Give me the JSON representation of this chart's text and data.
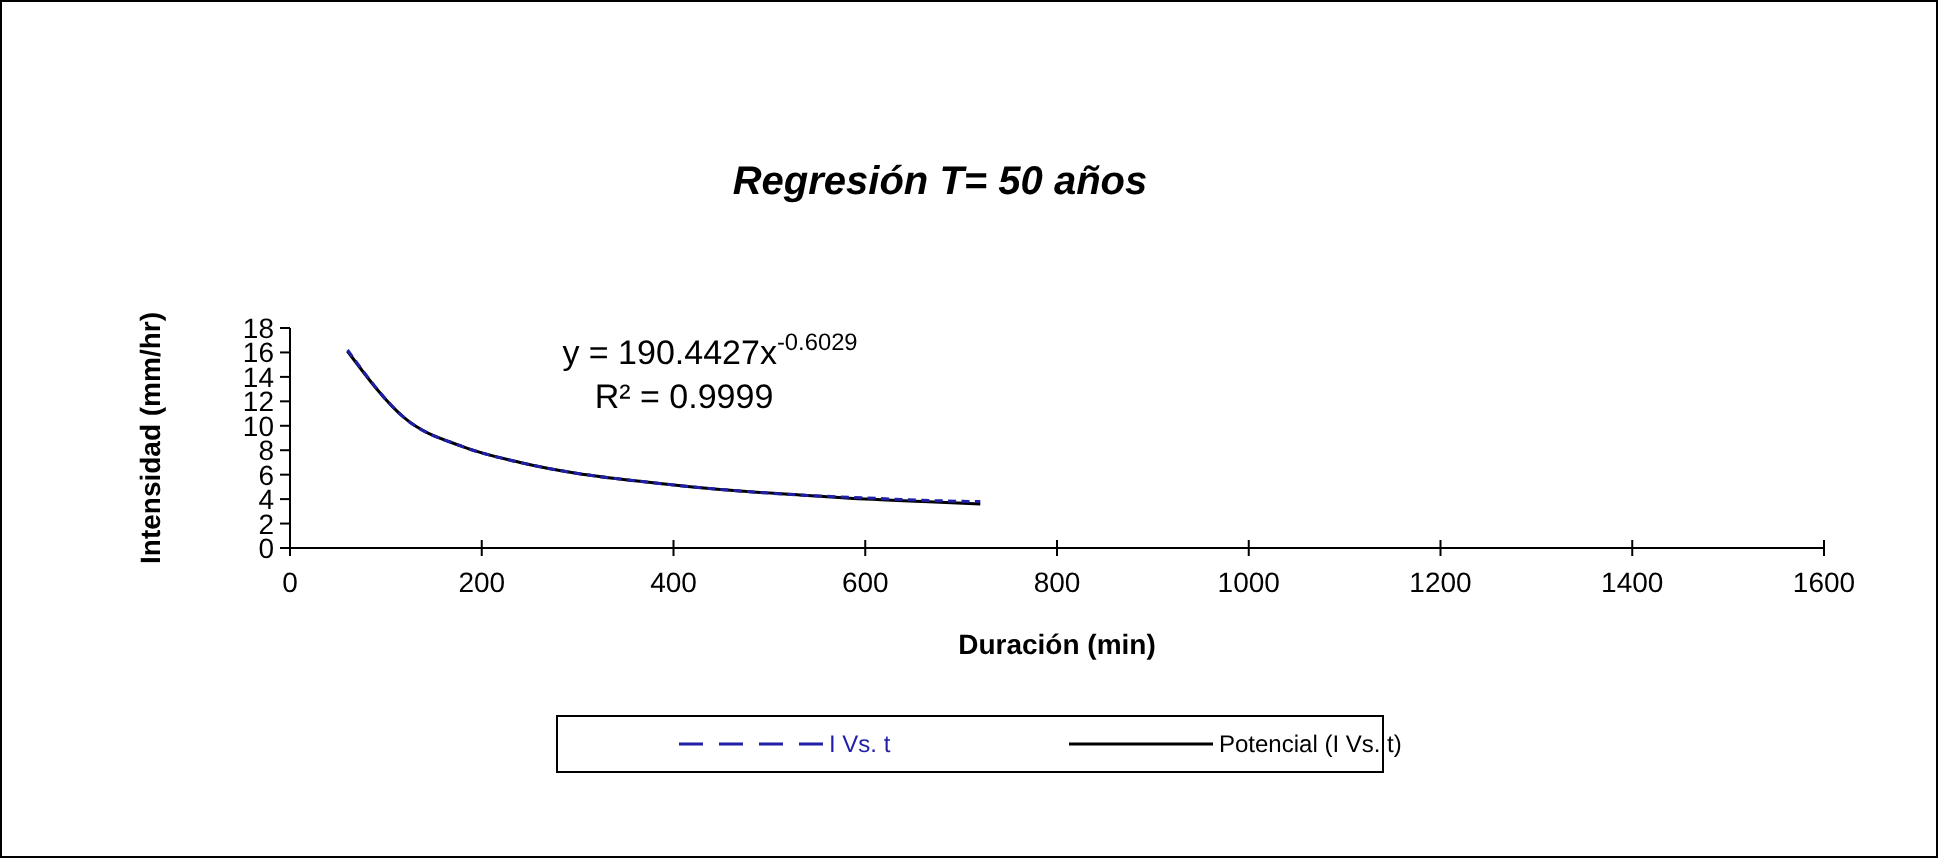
{
  "chart_data": {
    "type": "line",
    "title": "Regresión T= 50 años",
    "xlabel": "Duración (min)",
    "ylabel": "Intensidad (mm/hr)",
    "x": [
      60,
      120,
      180,
      240,
      300,
      360,
      420,
      480,
      540,
      600,
      660,
      720
    ],
    "series": [
      {
        "name": "I Vs. t",
        "color": "#1f1fa8",
        "line_style": "dashed",
        "values": [
          16.2,
          10.6,
          8.3,
          7.0,
          6.1,
          5.5,
          5.0,
          4.6,
          4.3,
          4.1,
          3.9,
          3.8
        ]
      },
      {
        "name": "Potencial (I Vs. t)",
        "color": "#000000",
        "line_style": "solid",
        "values": [
          16.1,
          10.6,
          8.3,
          7.0,
          6.1,
          5.5,
          5.0,
          4.6,
          4.3,
          4.0,
          3.8,
          3.6
        ]
      }
    ],
    "xlim": [
      0,
      1600
    ],
    "xticks": [
      0,
      200,
      400,
      600,
      800,
      1000,
      1200,
      1400,
      1600
    ],
    "ylim": [
      0,
      18
    ],
    "yticks": [
      0,
      2,
      4,
      6,
      8,
      10,
      12,
      14,
      16,
      18
    ],
    "annotations": [
      "y = 190.4427x$^{-0.6029}$",
      "R² = 0.9999"
    ],
    "grid": false,
    "legend": "bottom",
    "marker": "none"
  }
}
